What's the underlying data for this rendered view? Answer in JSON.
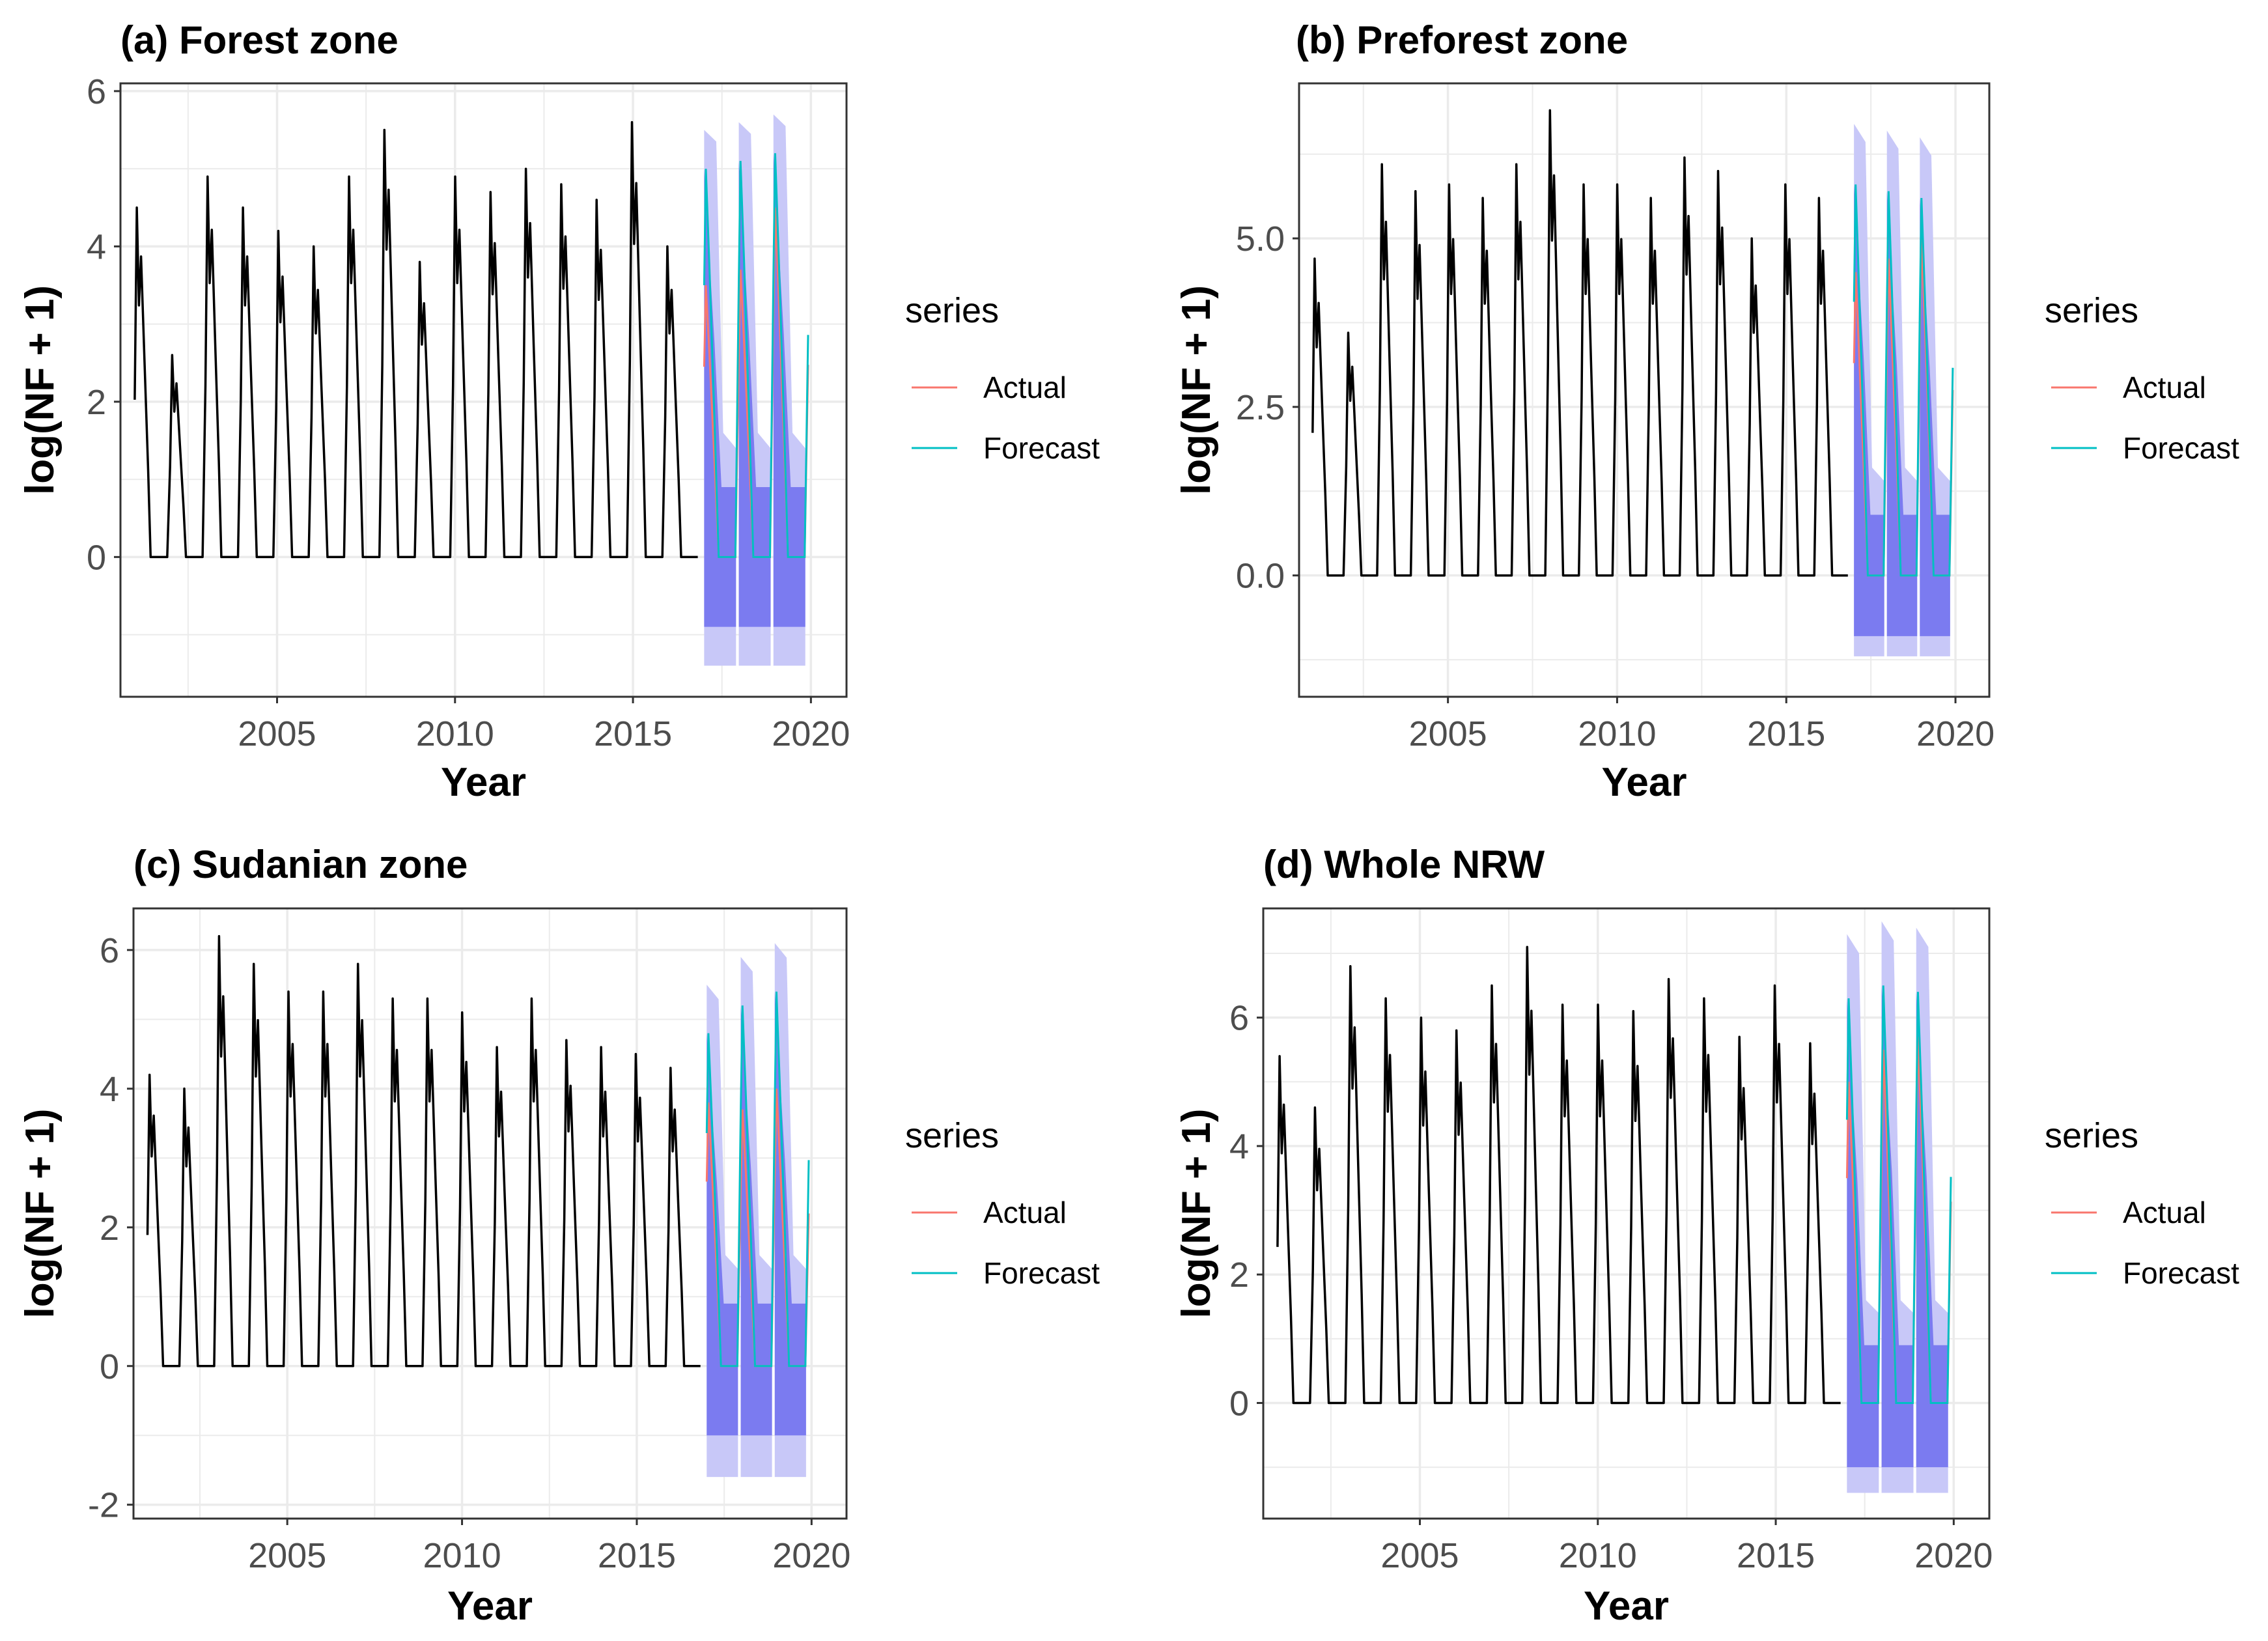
{
  "legend": {
    "title": "series",
    "items": [
      {
        "label": "Actual",
        "color": "#F8766D"
      },
      {
        "label": "Forecast",
        "color": "#00BFC4"
      }
    ]
  },
  "colors": {
    "history": "#000000",
    "band80": "#7b7bf0",
    "band95": "#c8c8f8",
    "grid": "#ebebeb",
    "frame": "#333333"
  },
  "chart_data": [
    {
      "type": "line",
      "title": "(a) Forest zone",
      "xlabel": "Year",
      "ylabel": "log(NF + 1)",
      "x_ticks": [
        2005,
        2010,
        2015,
        2020
      ],
      "y_ticks": [
        0,
        2,
        4,
        6
      ],
      "y_tick_labels": [
        "0",
        "2",
        "4",
        "6"
      ],
      "xlim": [
        2000.6,
        2021.0
      ],
      "ylim": [
        -1.8,
        6.1
      ],
      "history_start": 2001.0,
      "history_end": 2016.9,
      "forecast_start": 2017.0,
      "forecast_end": 2019.92,
      "peaks": [
        4.5,
        2.6,
        4.9,
        4.5,
        4.2,
        4.0,
        4.9,
        5.5,
        3.8,
        4.9,
        4.7,
        5.0,
        4.8,
        4.6,
        5.6,
        4.0
      ],
      "forecast_peaks": [
        5.0,
        5.1,
        5.2
      ],
      "actual_peaks": [
        3.5,
        3.7,
        4.5
      ],
      "lower80": -0.9,
      "lower95": -1.4,
      "upper95_pad": 0.5
    },
    {
      "type": "line",
      "title": "(b) Preforest zone",
      "xlabel": "Year",
      "ylabel": "log(NF + 1)",
      "x_ticks": [
        2005,
        2010,
        2015,
        2020
      ],
      "y_ticks": [
        0,
        2.5,
        5
      ],
      "y_tick_labels": [
        "0.0",
        "2.5",
        "5.0"
      ],
      "xlim": [
        2000.6,
        2021.0
      ],
      "ylim": [
        -1.8,
        7.3
      ],
      "history_start": 2001.0,
      "history_end": 2016.9,
      "forecast_start": 2017.0,
      "forecast_end": 2019.92,
      "peaks": [
        4.7,
        3.6,
        6.1,
        5.7,
        5.8,
        5.6,
        6.1,
        6.9,
        5.8,
        5.8,
        5.6,
        6.2,
        6.0,
        5.0,
        5.8,
        5.6
      ],
      "forecast_peaks": [
        5.8,
        5.7,
        5.6
      ],
      "actual_peaks": [
        4.5,
        4.7,
        5.0
      ],
      "lower80": -0.9,
      "lower95": -1.2,
      "upper95_pad": 0.9
    },
    {
      "type": "line",
      "title": "(c) Sudanian zone",
      "xlabel": "Year",
      "ylabel": "log(NF + 1)",
      "x_ticks": [
        2005,
        2010,
        2015,
        2020
      ],
      "y_ticks": [
        -2,
        0,
        2,
        4,
        6
      ],
      "y_tick_labels": [
        "-2",
        "0",
        "2",
        "4",
        "6"
      ],
      "xlim": [
        2000.6,
        2021.0
      ],
      "ylim": [
        -2.2,
        6.6
      ],
      "history_start": 2001.0,
      "history_end": 2016.9,
      "forecast_start": 2017.0,
      "forecast_end": 2019.92,
      "peaks": [
        4.2,
        4.0,
        6.2,
        5.8,
        5.4,
        5.4,
        5.8,
        5.3,
        5.3,
        5.1,
        4.6,
        5.3,
        4.7,
        4.6,
        4.5,
        4.3
      ],
      "forecast_peaks": [
        4.8,
        5.2,
        5.4
      ],
      "actual_peaks": [
        3.8,
        3.7,
        4.0
      ],
      "lower80": -1.0,
      "lower95": -1.6,
      "upper95_pad": 0.7
    },
    {
      "type": "line",
      "title": "(d) Whole NRW",
      "xlabel": "Year",
      "ylabel": "log(NF + 1)",
      "x_ticks": [
        2005,
        2010,
        2015,
        2020
      ],
      "y_ticks": [
        0,
        2,
        4,
        6
      ],
      "y_tick_labels": [
        "0",
        "2",
        "4",
        "6"
      ],
      "xlim": [
        2000.6,
        2021.0
      ],
      "ylim": [
        -1.8,
        7.7
      ],
      "history_start": 2001.0,
      "history_end": 2016.9,
      "forecast_start": 2017.0,
      "forecast_end": 2019.92,
      "peaks": [
        5.4,
        4.6,
        6.8,
        6.3,
        6.0,
        5.8,
        6.5,
        7.1,
        6.2,
        6.2,
        6.1,
        6.6,
        6.3,
        5.7,
        6.5,
        5.6
      ],
      "forecast_peaks": [
        6.3,
        6.5,
        6.4
      ],
      "actual_peaks": [
        5.0,
        5.5,
        5.7
      ],
      "lower80": -1.0,
      "lower95": -1.4,
      "upper95_pad": 1.0
    }
  ]
}
